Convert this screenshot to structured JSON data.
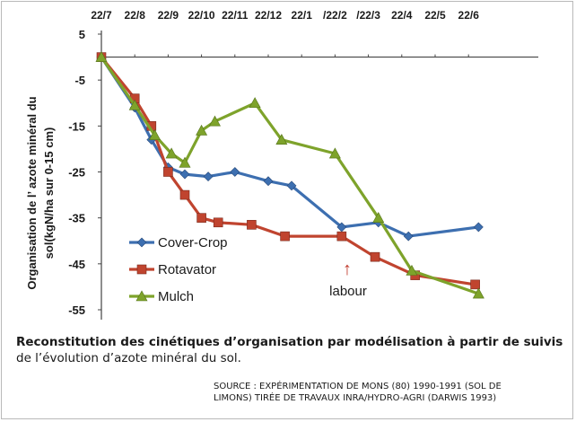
{
  "chart_data": {
    "type": "line",
    "categories": [
      "22/7",
      "22/8",
      "22/9",
      "22/10",
      "22/11",
      "22/12",
      "22/1",
      "/22/2",
      "/22/3",
      "22/4",
      "22/5",
      "22/6"
    ],
    "ylabel_line1": "Organisation de l’  azote minéral du",
    "ylabel_line2": "sol(kgN/ha sur 0-15 cm)",
    "ylim": [
      -55,
      5
    ],
    "yticks": [
      5,
      -5,
      -15,
      -25,
      -35,
      -45,
      -55
    ],
    "series": [
      {
        "name": "Cover-Crop",
        "color": "#3d6fb0",
        "marker": "diamond",
        "points": [
          [
            0,
            0
          ],
          [
            1,
            -11
          ],
          [
            1.5,
            -18
          ],
          [
            2,
            -24
          ],
          [
            2.5,
            -25.5
          ],
          [
            3.2,
            -26
          ],
          [
            4,
            -25
          ],
          [
            5,
            -27
          ],
          [
            5.7,
            -28
          ],
          [
            7.2,
            -37
          ],
          [
            8.3,
            -36
          ],
          [
            9.2,
            -39
          ],
          [
            11.3,
            -37
          ]
        ]
      },
      {
        "name": "Rotavator",
        "color": "#c0442f",
        "marker": "square",
        "points": [
          [
            0,
            0
          ],
          [
            1,
            -9
          ],
          [
            1.5,
            -15
          ],
          [
            2,
            -25
          ],
          [
            2.5,
            -30
          ],
          [
            3,
            -35
          ],
          [
            3.5,
            -36
          ],
          [
            4.5,
            -36.5
          ],
          [
            5.5,
            -39
          ],
          [
            7.2,
            -39
          ],
          [
            8.2,
            -43.5
          ],
          [
            9.4,
            -47.5
          ],
          [
            11.2,
            -49.5
          ]
        ]
      },
      {
        "name": "Mulch",
        "color": "#7ea32b",
        "marker": "triangle",
        "points": [
          [
            0,
            0
          ],
          [
            1,
            -10.5
          ],
          [
            1.6,
            -17
          ],
          [
            2.1,
            -21
          ],
          [
            2.5,
            -23
          ],
          [
            3,
            -16
          ],
          [
            3.4,
            -14
          ],
          [
            4.6,
            -10
          ],
          [
            5.4,
            -18
          ],
          [
            7,
            -21
          ],
          [
            8.3,
            -35
          ],
          [
            9.3,
            -46.5
          ],
          [
            11.3,
            -51.5
          ]
        ]
      }
    ],
    "annotation": {
      "text": "labour",
      "arrow_symbol": "↑"
    }
  },
  "caption": {
    "line1": "Reconstitution des cinétiques d’organisation par modélisation à partir de suivis",
    "line2": "de l’évolution d’azote minéral du sol."
  },
  "source": {
    "line1": "SOURCE : EXPÉRIMENTATION DE MONS (80) 1990-1991 (SOL DE",
    "line2": "LIMONS) TIRÉE DE TRAVAUX INRA/HYDRO-AGRI (DARWIS 1993)"
  }
}
